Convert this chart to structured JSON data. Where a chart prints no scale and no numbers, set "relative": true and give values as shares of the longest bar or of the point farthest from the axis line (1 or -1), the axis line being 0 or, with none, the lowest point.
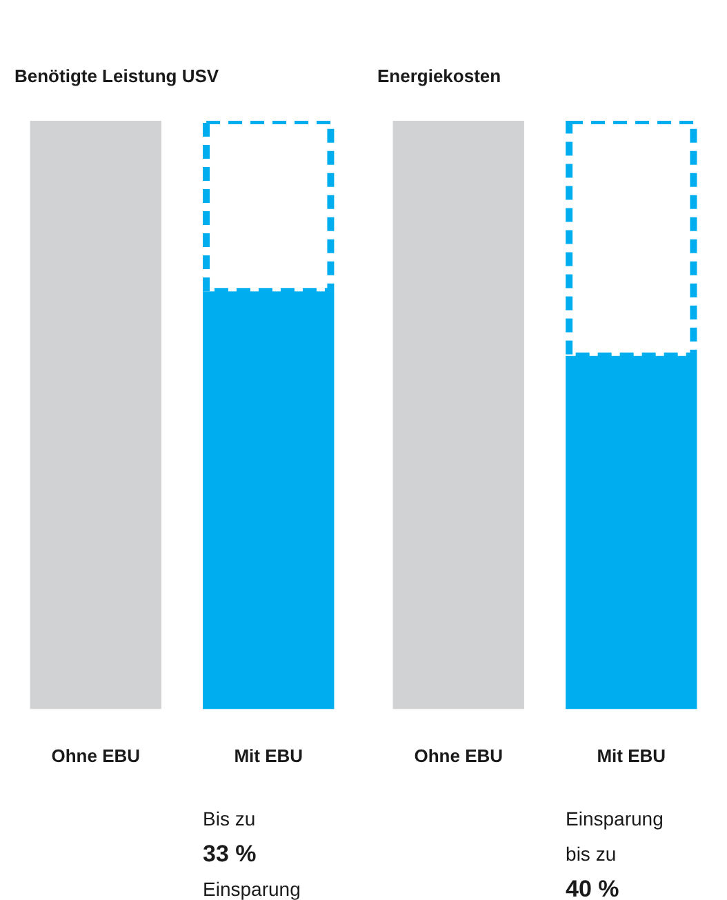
{
  "chart_data": [
    {
      "type": "bar",
      "title": "Benötigte Leistung USV",
      "categories": [
        "Ohne EBU",
        "Mit EBU"
      ],
      "relative": true,
      "stacked": true,
      "series": [
        {
          "colors": [
            "#d1d2d4",
            "#00aeef"
          ],
          "values": [
            1,
            0.71
          ]
        },
        {
          "color": "#00aeef",
          "line_style": "dashed",
          "values": [
            null,
            0.29
          ]
        }
      ],
      "annotations": [
        "Bis zu",
        "33 %",
        "Einsparung"
      ]
    },
    {
      "type": "bar",
      "title": "Energiekosten",
      "categories": [
        "Ohne EBU",
        "Mit EBU"
      ],
      "relative": true,
      "stacked": true,
      "series": [
        {
          "colors": [
            "#d1d2d4",
            "#00aeef"
          ],
          "values": [
            1,
            0.6
          ]
        },
        {
          "color": "#00aeef",
          "line_style": "dashed",
          "values": [
            null,
            0.4
          ]
        }
      ],
      "annotations": [
        "Einsparung",
        "bis zu",
        "40 %"
      ]
    }
  ]
}
